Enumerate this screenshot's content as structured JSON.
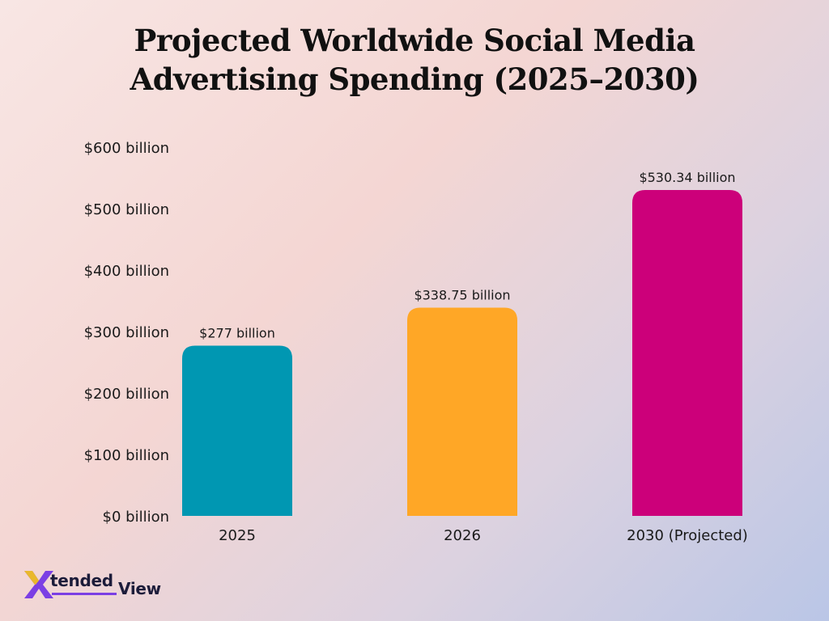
{
  "chart_data": {
    "type": "bar",
    "title_lines": [
      "Projected Worldwide Social Media",
      "Advertising Spending (2025–2030)"
    ],
    "categories": [
      "2025",
      "2026",
      "2030 (Projected)"
    ],
    "values": [
      277,
      338.75,
      530.34
    ],
    "data_labels": [
      "$277 billion",
      "$338.75 billion",
      "$530.34 billion"
    ],
    "colors": [
      "#0097b2",
      "#ffa726",
      "#cc007a"
    ],
    "ylim": [
      0,
      600
    ],
    "yticks": [
      0,
      100,
      200,
      300,
      400,
      500,
      600
    ],
    "ytick_labels": [
      "$0 billion",
      "$100 billion",
      "$200 billion",
      "$300 billion",
      "$400 billion",
      "$500 billion",
      "$600 billion"
    ],
    "grid": false,
    "legend": "none"
  },
  "brand": {
    "logo_part1": "tended",
    "logo_part2": "View",
    "x_color": "#7b3fe4"
  }
}
